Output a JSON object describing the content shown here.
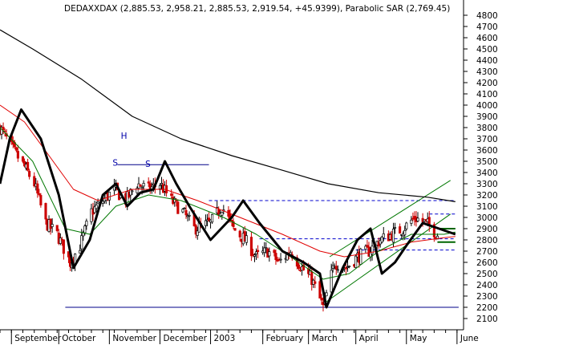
{
  "chart_data": {
    "type": "candlestick",
    "title": "DEDAXXDAX (2,885.53, 2,958.21, 2,885.53, 2,919.54, +45.9399), Parabolic SAR (2,769.45)",
    "ylim": [
      2000,
      4900
    ],
    "y_ticks": [
      2100,
      2200,
      2300,
      2400,
      2500,
      2600,
      2700,
      2800,
      2900,
      3000,
      3100,
      3200,
      3300,
      3400,
      3500,
      3600,
      3700,
      3800,
      3900,
      4000,
      4100,
      4200,
      4300,
      4400,
      4500,
      4600,
      4700,
      4800
    ],
    "x_axis": {
      "start": "2002-08-26",
      "end": "2003-06-06",
      "month_labels": [
        {
          "label": "September",
          "date": "2002-09-02"
        },
        {
          "label": "October",
          "date": "2002-10-01"
        },
        {
          "label": "November",
          "date": "2002-11-01"
        },
        {
          "label": "December",
          "date": "2002-12-02"
        },
        {
          "label": "2003",
          "date": "2003-01-02"
        },
        {
          "label": "February",
          "date": "2003-02-03"
        },
        {
          "label": "March",
          "date": "2003-03-03"
        },
        {
          "label": "April",
          "date": "2003-04-01"
        },
        {
          "label": "May",
          "date": "2003-05-02"
        },
        {
          "label": "June",
          "date": "2003-06-02"
        }
      ]
    },
    "close_path": [
      [
        "2002-08-26",
        3800
      ],
      [
        "2002-09-03",
        3600
      ],
      [
        "2002-09-10",
        3450
      ],
      [
        "2002-09-16",
        3300
      ],
      [
        "2002-09-23",
        2950
      ],
      [
        "2002-09-30",
        2850
      ],
      [
        "2002-10-08",
        2600
      ],
      [
        "2002-10-14",
        2750
      ],
      [
        "2002-10-21",
        3050
      ],
      [
        "2002-10-28",
        3150
      ],
      [
        "2002-11-04",
        3250
      ],
      [
        "2002-11-11",
        3150
      ],
      [
        "2002-11-18",
        3300
      ],
      [
        "2002-11-25",
        3250
      ],
      [
        "2002-12-02",
        3300
      ],
      [
        "2002-12-09",
        3150
      ],
      [
        "2002-12-16",
        3050
      ],
      [
        "2002-12-23",
        2900
      ],
      [
        "2003-01-02",
        2950
      ],
      [
        "2003-01-09",
        3100
      ],
      [
        "2003-01-16",
        2900
      ],
      [
        "2003-01-23",
        2800
      ],
      [
        "2003-01-30",
        2650
      ],
      [
        "2003-02-06",
        2700
      ],
      [
        "2003-02-13",
        2600
      ],
      [
        "2003-02-20",
        2700
      ],
      [
        "2003-02-27",
        2550
      ],
      [
        "2003-03-05",
        2450
      ],
      [
        "2003-03-12",
        2200
      ],
      [
        "2003-03-19",
        2600
      ],
      [
        "2003-03-26",
        2550
      ],
      [
        "2003-04-02",
        2650
      ],
      [
        "2003-04-09",
        2700
      ],
      [
        "2003-04-16",
        2800
      ],
      [
        "2003-04-23",
        2850
      ],
      [
        "2003-04-30",
        2900
      ],
      [
        "2003-05-07",
        3000
      ],
      [
        "2003-05-14",
        2950
      ],
      [
        "2003-05-21",
        2850
      ],
      [
        "2003-05-28",
        2850
      ],
      [
        "2003-05-30",
        2920
      ]
    ],
    "series": [
      {
        "name": "",
        "color": "#000000",
        "width": 1.2,
        "points": [
          [
            "2002-08-26",
            4670
          ],
          [
            "2002-09-15",
            4500
          ],
          [
            "2002-10-15",
            4230
          ],
          [
            "2002-11-15",
            3900
          ],
          [
            "2002-12-15",
            3700
          ],
          [
            "2003-01-15",
            3550
          ],
          [
            "2003-02-15",
            3420
          ],
          [
            "2003-03-15",
            3300
          ],
          [
            "2003-04-15",
            3220
          ],
          [
            "2003-05-15",
            3180
          ],
          [
            "2003-06-01",
            3140
          ]
        ]
      },
      {
        "name": "",
        "color": "#e00000",
        "width": 1.0,
        "points": [
          [
            "2002-08-26",
            4000
          ],
          [
            "2002-09-10",
            3850
          ],
          [
            "2002-09-25",
            3550
          ],
          [
            "2002-10-10",
            3250
          ],
          [
            "2002-10-25",
            3150
          ],
          [
            "2002-11-15",
            3250
          ],
          [
            "2002-12-05",
            3250
          ],
          [
            "2002-12-25",
            3150
          ],
          [
            "2003-01-20",
            3000
          ],
          [
            "2003-02-15",
            2850
          ],
          [
            "2003-03-10",
            2700
          ],
          [
            "2003-03-25",
            2650
          ],
          [
            "2003-04-15",
            2700
          ],
          [
            "2003-05-05",
            2780
          ],
          [
            "2003-05-25",
            2820
          ],
          [
            "2003-06-01",
            2830
          ]
        ]
      },
      {
        "name": "",
        "color": "#007700",
        "width": 1.0,
        "points": [
          [
            "2002-08-26",
            3800
          ],
          [
            "2002-09-15",
            3500
          ],
          [
            "2002-10-05",
            2900
          ],
          [
            "2002-10-20",
            2850
          ],
          [
            "2002-11-05",
            3100
          ],
          [
            "2002-11-25",
            3200
          ],
          [
            "2002-12-15",
            3150
          ],
          [
            "2003-01-10",
            3000
          ],
          [
            "2003-01-30",
            2850
          ],
          [
            "2003-02-20",
            2650
          ],
          [
            "2003-03-12",
            2450
          ],
          [
            "2003-03-28",
            2500
          ],
          [
            "2003-04-15",
            2700
          ],
          [
            "2003-05-05",
            2850
          ],
          [
            "2003-05-25",
            2850
          ],
          [
            "2003-06-01",
            2870
          ]
        ]
      },
      {
        "name": "",
        "color": "#000000",
        "width": 3.0,
        "points": [
          [
            "2002-08-26",
            3300
          ],
          [
            "2002-09-01",
            3700
          ],
          [
            "2002-09-08",
            3960
          ],
          [
            "2002-09-20",
            3700
          ],
          [
            "2002-10-01",
            3200
          ],
          [
            "2002-10-10",
            2550
          ],
          [
            "2002-10-20",
            2800
          ],
          [
            "2002-10-28",
            3200
          ],
          [
            "2002-11-05",
            3300
          ],
          [
            "2002-11-12",
            3100
          ],
          [
            "2002-11-20",
            3220
          ],
          [
            "2002-11-28",
            3250
          ],
          [
            "2002-12-05",
            3500
          ],
          [
            "2002-12-12",
            3300
          ],
          [
            "2002-12-20",
            3100
          ],
          [
            "2003-01-02",
            2800
          ],
          [
            "2003-01-15",
            3000
          ],
          [
            "2003-01-22",
            3150
          ],
          [
            "2003-02-01",
            2950
          ],
          [
            "2003-02-15",
            2700
          ],
          [
            "2003-02-28",
            2600
          ],
          [
            "2003-03-10",
            2500
          ],
          [
            "2003-03-14",
            2200
          ],
          [
            "2003-03-24",
            2550
          ],
          [
            "2003-04-02",
            2800
          ],
          [
            "2003-04-10",
            2900
          ],
          [
            "2003-04-17",
            2500
          ],
          [
            "2003-04-25",
            2600
          ],
          [
            "2003-05-02",
            2750
          ],
          [
            "2003-05-12",
            2950
          ],
          [
            "2003-05-22",
            2900
          ],
          [
            "2003-06-01",
            2850
          ]
        ]
      }
    ],
    "annotations": [
      {
        "text": "S",
        "date": "2002-11-03",
        "value": 3460,
        "color": "#0000aa"
      },
      {
        "text": "H",
        "date": "2002-11-08",
        "value": 3700,
        "color": "#0000aa"
      },
      {
        "text": "S",
        "date": "2002-11-23",
        "value": 3450,
        "color": "#0000aa"
      }
    ],
    "horizontal_lines": [
      {
        "value": 3470,
        "from": "2002-11-06",
        "to": "2003-01-01",
        "color": "#000088",
        "dashed": false
      },
      {
        "value": 3150,
        "from": "2003-01-01",
        "to": "2003-06-01",
        "color": "#0000cc",
        "dashed": true
      },
      {
        "value": 3030,
        "from": "2003-05-16",
        "to": "2003-06-01",
        "color": "#0000cc",
        "dashed": true
      },
      {
        "value": 2810,
        "from": "2003-02-01",
        "to": "2003-06-01",
        "color": "#0000cc",
        "dashed": true
      },
      {
        "value": 2710,
        "from": "2003-04-01",
        "to": "2003-06-01",
        "color": "#0000cc",
        "dashed": true
      },
      {
        "value": 2200,
        "from": "2002-10-05",
        "to": "2003-06-03",
        "color": "#000088",
        "dashed": false
      },
      {
        "value": 2900,
        "from": "2003-05-21",
        "to": "2003-06-01",
        "color": "#006600",
        "dashed": false,
        "thick": true
      },
      {
        "value": 2780,
        "from": "2003-05-21",
        "to": "2003-06-01",
        "color": "#006600",
        "dashed": false,
        "thick": true
      }
    ],
    "trend_lines": [
      {
        "from": [
          "2003-03-16",
          2650
        ],
        "to": [
          "2003-05-29",
          3330
        ],
        "color": "#007700"
      },
      {
        "from": [
          "2003-03-14",
          2250
        ],
        "to": [
          "2003-05-29",
          3030
        ],
        "color": "#007700"
      }
    ]
  }
}
